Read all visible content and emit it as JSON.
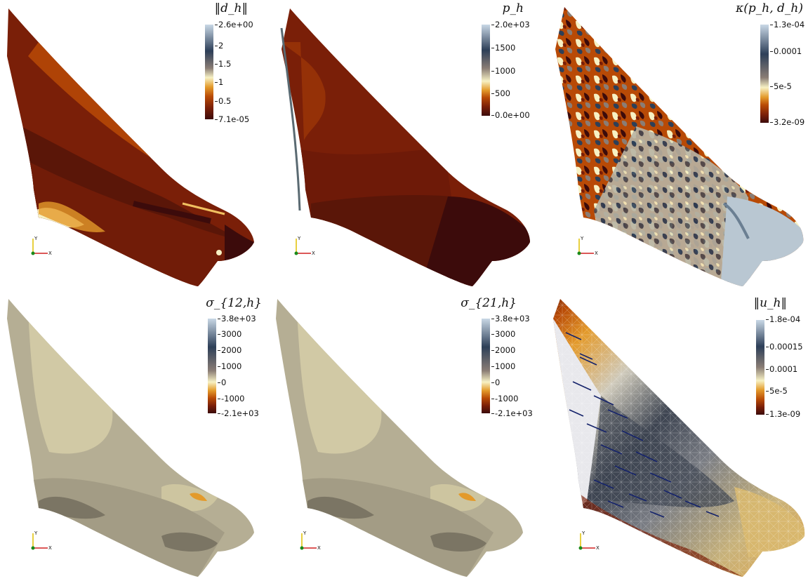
{
  "panels": [
    {
      "title": "‖d_h‖",
      "colormap": [
        "#3c0b0b",
        "#7a1f08",
        "#b84a06",
        "#e39a2b",
        "#f7f1c4",
        "#5b4a46",
        "#2d3f58",
        "#c9d8e6"
      ],
      "ticks": [
        "2.6e+00",
        "2",
        "1.5",
        "1",
        "0.5",
        "7.1e-05"
      ]
    },
    {
      "title": "p_h",
      "colormap": [
        "#3c0b0b",
        "#7a1f08",
        "#b84a06",
        "#e39a2b",
        "#f7f1c4",
        "#5b4a46",
        "#2d3f58",
        "#c9d8e6"
      ],
      "ticks": [
        "2.0e+03",
        "1500",
        "1000",
        "500",
        "0.0e+00"
      ]
    },
    {
      "title": "κ(p_h, d_h)",
      "colormap": [
        "#3c0b0b",
        "#7a1f08",
        "#b84a06",
        "#e39a2b",
        "#f7f1c4",
        "#5b4a46",
        "#2d3f58",
        "#c9d8e6"
      ],
      "ticks": [
        "1.3e-04",
        "0.0001",
        "5e-5",
        "3.2e-09"
      ]
    },
    {
      "title": "σ_{12,h}",
      "colormap": [
        "#3c0b0b",
        "#7a1f08",
        "#b84a06",
        "#e39a2b",
        "#f7f1c4",
        "#5b4a46",
        "#2d3f58",
        "#c9d8e6"
      ],
      "ticks": [
        "3.8e+03",
        "3000",
        "2000",
        "1000",
        "0",
        "-1000",
        "-2.1e+03"
      ]
    },
    {
      "title": "σ_{21,h}",
      "colormap": [
        "#3c0b0b",
        "#7a1f08",
        "#b84a06",
        "#e39a2b",
        "#f7f1c4",
        "#5b4a46",
        "#2d3f58",
        "#c9d8e6"
      ],
      "ticks": [
        "3.8e+03",
        "3000",
        "2000",
        "1000",
        "0",
        "-1000",
        "-2.1e+03"
      ]
    },
    {
      "title": "‖u_h‖",
      "colormap": [
        "#3c0b0b",
        "#7a1f08",
        "#b84a06",
        "#e39a2b",
        "#f7f1c4",
        "#5b4a46",
        "#2d3f58",
        "#c9d8e6"
      ],
      "ticks": [
        "1.8e-04",
        "0.00015",
        "0.0001",
        "5e-5",
        "1.3e-09"
      ]
    }
  ],
  "axis_labels": {
    "y": "Y",
    "x": "X"
  }
}
